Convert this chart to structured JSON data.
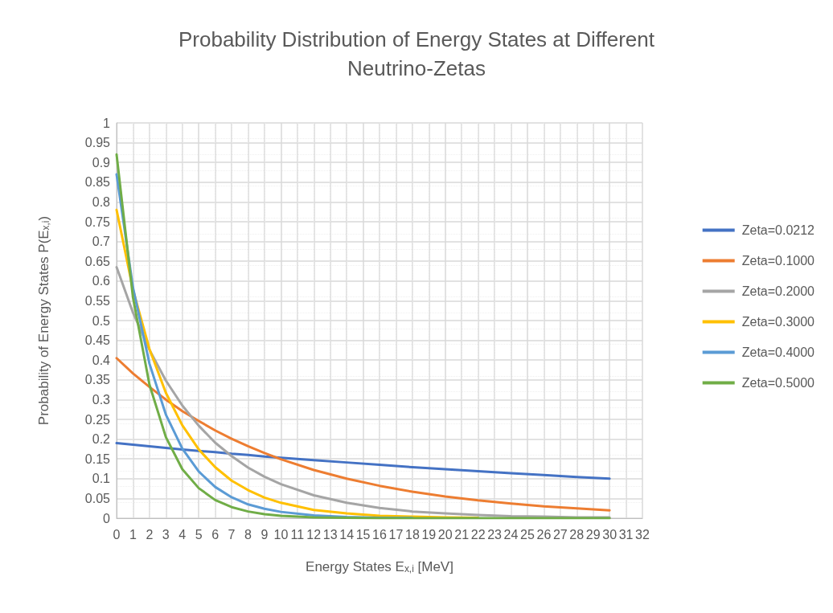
{
  "chart_data": {
    "type": "line",
    "title": "Probability Distribution of Energy States at Different\nNeutrino-Zetas",
    "xlabel": "Energy States E$_{x,i}$ [MeV]",
    "ylabel": "Probability of Energy States P(E$_{x,i}$)",
    "x": [
      0,
      1,
      2,
      3,
      4,
      5,
      6,
      7,
      8,
      9,
      10,
      12,
      14,
      16,
      18,
      20,
      22,
      24,
      26,
      28,
      30
    ],
    "series": [
      {
        "name": "Zeta=0.0212",
        "color": "#4472c4",
        "values": [
          0.19,
          0.186,
          0.182,
          0.178,
          0.174,
          0.17,
          0.167,
          0.163,
          0.16,
          0.156,
          0.153,
          0.147,
          0.141,
          0.135,
          0.129,
          0.124,
          0.119,
          0.114,
          0.109,
          0.104,
          0.1
        ]
      },
      {
        "name": "Zeta=0.1000",
        "color": "#ed7d31",
        "values": [
          0.405,
          0.366,
          0.332,
          0.3,
          0.271,
          0.246,
          0.222,
          0.201,
          0.182,
          0.165,
          0.149,
          0.122,
          0.1,
          0.082,
          0.067,
          0.055,
          0.045,
          0.037,
          0.03,
          0.025,
          0.02
        ]
      },
      {
        "name": "Zeta=0.2000",
        "color": "#a5a5a5",
        "values": [
          0.635,
          0.52,
          0.426,
          0.348,
          0.285,
          0.234,
          0.191,
          0.157,
          0.128,
          0.105,
          0.086,
          0.058,
          0.039,
          0.026,
          0.017,
          0.012,
          0.008,
          0.005,
          0.004,
          0.002,
          0.002
        ]
      },
      {
        "name": "Zeta=0.3000",
        "color": "#ffc000",
        "values": [
          0.78,
          0.578,
          0.428,
          0.317,
          0.235,
          0.174,
          0.129,
          0.095,
          0.071,
          0.052,
          0.039,
          0.021,
          0.012,
          0.006,
          0.004,
          0.002,
          0.001,
          null,
          null,
          null,
          null
        ]
      },
      {
        "name": "Zeta=0.4000",
        "color": "#5b9bd5",
        "values": [
          0.87,
          0.583,
          0.391,
          0.262,
          0.176,
          0.118,
          0.079,
          0.053,
          0.035,
          0.024,
          0.016,
          0.007,
          0.003,
          0.001,
          0.001,
          null,
          null,
          null,
          null,
          null,
          null
        ]
      },
      {
        "name": "Zeta=0.5000",
        "color": "#70ad47",
        "values": [
          0.92,
          0.558,
          0.338,
          0.205,
          0.124,
          0.076,
          0.046,
          0.028,
          0.017,
          0.01,
          0.006,
          0.002,
          0.001,
          0,
          0,
          0,
          0,
          0,
          0,
          0,
          0
        ]
      }
    ],
    "xlim": [
      0,
      32
    ],
    "xticks": [
      0,
      1,
      2,
      3,
      4,
      5,
      6,
      7,
      8,
      9,
      10,
      11,
      12,
      13,
      14,
      15,
      16,
      17,
      18,
      19,
      20,
      21,
      22,
      23,
      24,
      25,
      26,
      27,
      28,
      29,
      30,
      31,
      32
    ],
    "ylim": [
      0,
      1
    ],
    "yticks": [
      0,
      0.05,
      0.1,
      0.15,
      0.2,
      0.25,
      0.3,
      0.35,
      0.4,
      0.45,
      0.5,
      0.55,
      0.6,
      0.65,
      0.7,
      0.75,
      0.8,
      0.85,
      0.9,
      0.95,
      1
    ],
    "grid": true,
    "legend": "right",
    "marker": "none",
    "line_style": "solid"
  }
}
